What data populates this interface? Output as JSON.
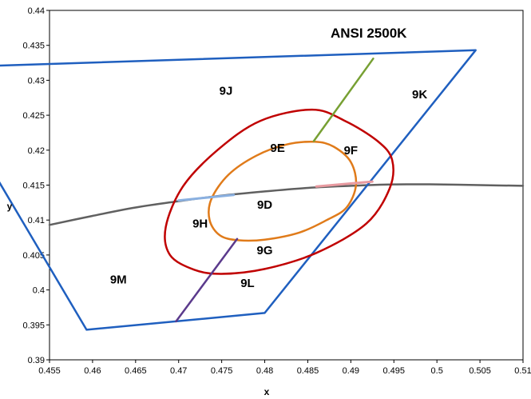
{
  "chart_data": {
    "type": "line",
    "title": "ANSI 2500K",
    "xlabel": "x",
    "ylabel": "y",
    "xlim": [
      0.455,
      0.51
    ],
    "ylim": [
      0.39,
      0.44
    ],
    "x_ticks": [
      "0.455",
      "0.46",
      "0.465",
      "0.47",
      "0.475",
      "0.48",
      "0.485",
      "0.49",
      "0.495",
      "0.5",
      "0.505",
      "0.51"
    ],
    "y_ticks": [
      "0.39",
      "0.395",
      "0.4",
      "0.405",
      "0.41",
      "0.415",
      "0.42",
      "0.425",
      "0.43",
      "0.435",
      "0.44"
    ],
    "grid": false,
    "series": [
      {
        "kind": "quadrangle",
        "color": "#1f5fbf",
        "points": [
          [
            0.4413,
            0.4318
          ],
          [
            0.5045,
            0.4343
          ],
          [
            0.48,
            0.3967
          ],
          [
            0.4593,
            0.3943
          ]
        ]
      },
      {
        "kind": "divider",
        "color": "#77a033",
        "points": [
          [
            0.4926,
            0.4331
          ],
          [
            0.4857,
            0.4213
          ]
        ]
      },
      {
        "kind": "divider",
        "color": "#5b3a8c",
        "points": [
          [
            0.4697,
            0.3955
          ],
          [
            0.4768,
            0.4073
          ]
        ]
      },
      {
        "kind": "ellipse",
        "color": "#c00000",
        "center": [
          0.4815,
          0.414
        ],
        "points": [
          [
            0.4855,
            0.4258
          ],
          [
            0.4893,
            0.4242
          ],
          [
            0.4931,
            0.4213
          ],
          [
            0.4948,
            0.4186
          ],
          [
            0.4945,
            0.4145
          ],
          [
            0.4918,
            0.4095
          ],
          [
            0.486,
            0.4053
          ],
          [
            0.48,
            0.403
          ],
          [
            0.475,
            0.4023
          ],
          [
            0.4718,
            0.4029
          ],
          [
            0.469,
            0.405
          ],
          [
            0.4685,
            0.409
          ],
          [
            0.4705,
            0.4148
          ],
          [
            0.4745,
            0.42
          ],
          [
            0.4795,
            0.4242
          ],
          [
            0.4855,
            0.4258
          ]
        ]
      },
      {
        "kind": "ellipse",
        "color": "#e07b1a",
        "center": [
          0.4815,
          0.414
        ],
        "points": [
          [
            0.4858,
            0.4212
          ],
          [
            0.488,
            0.4205
          ],
          [
            0.49,
            0.4183
          ],
          [
            0.4906,
            0.415
          ],
          [
            0.4895,
            0.4118
          ],
          [
            0.4872,
            0.41
          ],
          [
            0.484,
            0.4082
          ],
          [
            0.48,
            0.4072
          ],
          [
            0.477,
            0.4071
          ],
          [
            0.4748,
            0.4078
          ],
          [
            0.4736,
            0.41
          ],
          [
            0.4738,
            0.413
          ],
          [
            0.4758,
            0.4165
          ],
          [
            0.479,
            0.4192
          ],
          [
            0.4825,
            0.4208
          ],
          [
            0.4858,
            0.4212
          ]
        ]
      },
      {
        "kind": "planckian-locus",
        "color": "#606060",
        "points": [
          [
            0.455,
            0.4093
          ],
          [
            0.46,
            0.4106
          ],
          [
            0.465,
            0.4118
          ],
          [
            0.47,
            0.4127
          ],
          [
            0.475,
            0.4135
          ],
          [
            0.48,
            0.4141
          ],
          [
            0.485,
            0.4146
          ],
          [
            0.49,
            0.4149
          ],
          [
            0.495,
            0.4151
          ],
          [
            0.5,
            0.4151
          ],
          [
            0.505,
            0.415
          ],
          [
            0.51,
            0.4149
          ]
        ]
      },
      {
        "kind": "highlight",
        "color": "#8ab0e0",
        "points": [
          [
            0.47,
            0.4128
          ],
          [
            0.4764,
            0.4136
          ]
        ]
      },
      {
        "kind": "highlight",
        "color": "#e89aa0",
        "points": [
          [
            0.486,
            0.4148
          ],
          [
            0.4925,
            0.4155
          ]
        ]
      }
    ],
    "annotations": [
      {
        "text": "9J",
        "x": 0.4755,
        "y": 0.4285
      },
      {
        "text": "9K",
        "x": 0.498,
        "y": 0.428
      },
      {
        "text": "9E",
        "x": 0.4815,
        "y": 0.4203
      },
      {
        "text": "9F",
        "x": 0.49,
        "y": 0.42
      },
      {
        "text": "9D",
        "x": 0.48,
        "y": 0.4122
      },
      {
        "text": "9H",
        "x": 0.4725,
        "y": 0.4095
      },
      {
        "text": "9G",
        "x": 0.48,
        "y": 0.4057
      },
      {
        "text": "9M",
        "x": 0.463,
        "y": 0.4015
      },
      {
        "text": "9L",
        "x": 0.478,
        "y": 0.401
      }
    ]
  }
}
